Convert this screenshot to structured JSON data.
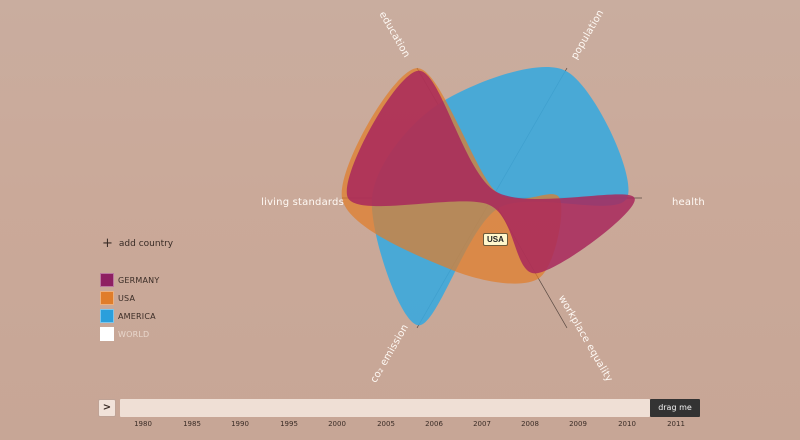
{
  "chart_data": {
    "type": "radar",
    "axes": [
      "education",
      "population",
      "health",
      "workplace equality",
      "co2 emission",
      "living standards"
    ],
    "series": [
      {
        "name": "GERMANY",
        "color": "#a8285c",
        "values": [
          0.98,
          0.05,
          0.95,
          0.58,
          0.05,
          0.96
        ]
      },
      {
        "name": "USA",
        "color": "#e07d2a",
        "values": [
          1.0,
          0.05,
          0.45,
          0.62,
          0.55,
          1.0
        ]
      },
      {
        "name": "AMERICA",
        "color": "#3ba8dd",
        "values": [
          0.72,
          0.98,
          0.9,
          0.08,
          0.98,
          0.8
        ]
      }
    ]
  },
  "axis_labels": {
    "education": "education",
    "population": "population",
    "health": "health",
    "workplace_equality": "workplace equality",
    "co2_emission": "co₂ emission",
    "living_standards": "living standards"
  },
  "tooltip": "USA",
  "add_country_label": "add country",
  "legend": [
    {
      "label": "GERMANY",
      "color": "#8e1f62"
    },
    {
      "label": "USA",
      "color": "#e07d2a"
    },
    {
      "label": "AMERICA",
      "color": "#2a9fdc"
    },
    {
      "label": "WORLD",
      "color": "#ffffff"
    }
  ],
  "timeline": {
    "play_label": ">",
    "handle_label": "drag me",
    "years": [
      "1980",
      "1985",
      "1990",
      "1995",
      "2000",
      "2005",
      "2006",
      "2007",
      "2008",
      "2009",
      "2010",
      "2011"
    ]
  }
}
